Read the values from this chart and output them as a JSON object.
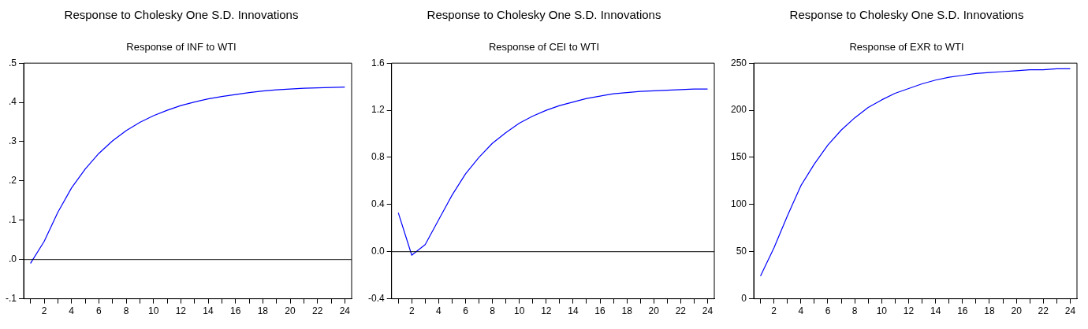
{
  "chart_data": [
    {
      "type": "line",
      "title": "Response to Cholesky One S.D. Innovations",
      "subtitle": "Response of INF to WTI",
      "x": [
        1,
        2,
        3,
        4,
        5,
        6,
        7,
        8,
        9,
        10,
        11,
        12,
        13,
        14,
        15,
        16,
        17,
        18,
        19,
        20,
        21,
        22,
        23,
        24
      ],
      "series": [
        {
          "color": "#0000ff",
          "values": [
            -0.01,
            0.046,
            0.12,
            0.182,
            0.23,
            0.27,
            0.302,
            0.328,
            0.349,
            0.366,
            0.38,
            0.392,
            0.401,
            0.409,
            0.415,
            0.42,
            0.425,
            0.429,
            0.432,
            0.434,
            0.436,
            0.437,
            0.438,
            0.439
          ]
        }
      ],
      "xlim": [
        0.5,
        24.5
      ],
      "xticks": [
        {
          "value": 1,
          "label": null
        },
        2,
        {
          "value": 3,
          "label": null
        },
        4,
        {
          "value": 5,
          "label": null
        },
        6,
        {
          "value": 7,
          "label": null
        },
        8,
        {
          "value": 9,
          "label": null
        },
        10,
        {
          "value": 11,
          "label": null
        },
        12,
        {
          "value": 13,
          "label": null
        },
        14,
        {
          "value": 15,
          "label": null
        },
        16,
        {
          "value": 17,
          "label": null
        },
        18,
        {
          "value": 19,
          "label": null
        },
        20,
        {
          "value": 21,
          "label": null
        },
        22,
        {
          "value": 23,
          "label": null
        },
        24
      ],
      "ylim": [
        -0.1,
        0.5
      ],
      "yticks": [
        {
          "value": -0.1,
          "label": "-.1"
        },
        {
          "value": 0,
          "label": ".0"
        },
        {
          "value": 0.1,
          "label": ".1"
        },
        {
          "value": 0.2,
          "label": ".2"
        },
        {
          "value": 0.3,
          "label": ".3"
        },
        {
          "value": 0.4,
          "label": ".4"
        },
        {
          "value": 0.5,
          "label": ".5"
        }
      ],
      "ref_lines": [
        {
          "axis": "y",
          "value": 0,
          "color": "#000000"
        }
      ],
      "grid": false,
      "legend": false,
      "marker": "none",
      "line_style": "solid"
    },
    {
      "type": "line",
      "title": "Response to Cholesky One S.D. Innovations",
      "subtitle": "Response of CEI to WTI",
      "x": [
        1,
        2,
        3,
        4,
        5,
        6,
        7,
        8,
        9,
        10,
        11,
        12,
        13,
        14,
        15,
        16,
        17,
        18,
        19,
        20,
        21,
        22,
        23,
        24
      ],
      "series": [
        {
          "color": "#0000ff",
          "values": [
            0.33,
            -0.03,
            0.06,
            0.27,
            0.48,
            0.66,
            0.8,
            0.92,
            1.01,
            1.09,
            1.15,
            1.2,
            1.24,
            1.27,
            1.3,
            1.32,
            1.34,
            1.35,
            1.36,
            1.365,
            1.37,
            1.375,
            1.38,
            1.38
          ]
        }
      ],
      "xlim": [
        0.5,
        24.5
      ],
      "xticks": [
        {
          "value": 1,
          "label": null
        },
        2,
        {
          "value": 3,
          "label": null
        },
        4,
        {
          "value": 5,
          "label": null
        },
        6,
        {
          "value": 7,
          "label": null
        },
        8,
        {
          "value": 9,
          "label": null
        },
        10,
        {
          "value": 11,
          "label": null
        },
        12,
        {
          "value": 13,
          "label": null
        },
        14,
        {
          "value": 15,
          "label": null
        },
        16,
        {
          "value": 17,
          "label": null
        },
        18,
        {
          "value": 19,
          "label": null
        },
        20,
        {
          "value": 21,
          "label": null
        },
        22,
        {
          "value": 23,
          "label": null
        },
        24
      ],
      "ylim": [
        -0.4,
        1.6
      ],
      "yticks": [
        {
          "value": -0.4,
          "label": "-0.4"
        },
        {
          "value": 0,
          "label": "0.0"
        },
        {
          "value": 0.4,
          "label": "0.4"
        },
        {
          "value": 0.8,
          "label": "0.8"
        },
        {
          "value": 1.2,
          "label": "1.2"
        },
        {
          "value": 1.6,
          "label": "1.6"
        }
      ],
      "ref_lines": [
        {
          "axis": "y",
          "value": 0,
          "color": "#000000"
        }
      ],
      "grid": false,
      "legend": false,
      "marker": "none",
      "line_style": "solid"
    },
    {
      "type": "line",
      "title": "Response to Cholesky One S.D. Innovations",
      "subtitle": "Response of EXR to WTI",
      "x": [
        1,
        2,
        3,
        4,
        5,
        6,
        7,
        8,
        9,
        10,
        11,
        12,
        13,
        14,
        15,
        16,
        17,
        18,
        19,
        20,
        21,
        22,
        23,
        24
      ],
      "series": [
        {
          "color": "#0000ff",
          "values": [
            24,
            54,
            88,
            120,
            143,
            163,
            179,
            192,
            203,
            211,
            218,
            223,
            228,
            232,
            235,
            237,
            239,
            240,
            241,
            242,
            243,
            243,
            244,
            244
          ]
        }
      ],
      "xlim": [
        0.5,
        24.5
      ],
      "xticks": [
        {
          "value": 1,
          "label": null
        },
        2,
        {
          "value": 3,
          "label": null
        },
        4,
        {
          "value": 5,
          "label": null
        },
        6,
        {
          "value": 7,
          "label": null
        },
        8,
        {
          "value": 9,
          "label": null
        },
        10,
        {
          "value": 11,
          "label": null
        },
        12,
        {
          "value": 13,
          "label": null
        },
        14,
        {
          "value": 15,
          "label": null
        },
        16,
        {
          "value": 17,
          "label": null
        },
        18,
        {
          "value": 19,
          "label": null
        },
        20,
        {
          "value": 21,
          "label": null
        },
        22,
        {
          "value": 23,
          "label": null
        },
        24
      ],
      "ylim": [
        0,
        250
      ],
      "yticks": [
        0,
        50,
        100,
        150,
        200,
        250
      ],
      "grid": false,
      "legend": false,
      "marker": "none",
      "line_style": "solid"
    }
  ]
}
